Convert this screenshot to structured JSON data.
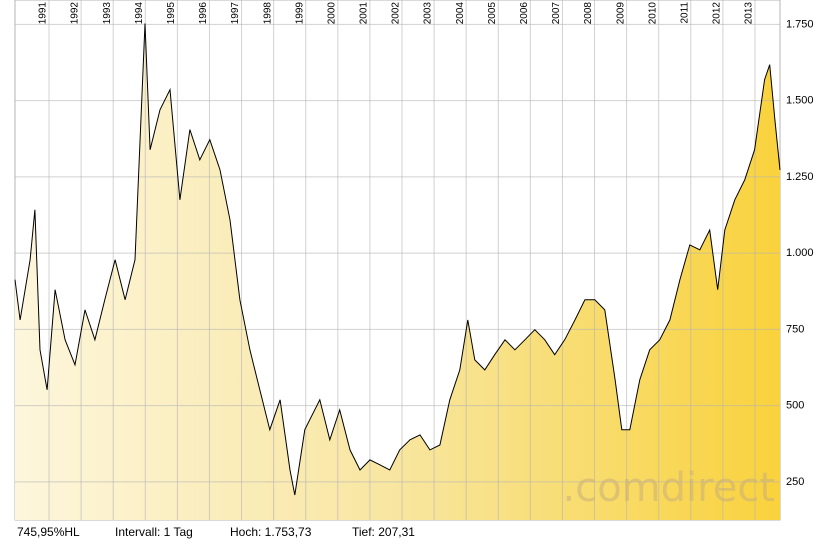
{
  "chart_data": {
    "type": "area",
    "x": [
      1989.94,
      1990.1,
      1990.41,
      1990.56,
      1990.72,
      1990.94,
      1991.19,
      1991.5,
      1991.81,
      1992.12,
      1992.43,
      1992.74,
      1993.06,
      1993.37,
      1993.68,
      1993.99,
      1994.15,
      1994.46,
      1994.77,
      1995.08,
      1995.39,
      1995.7,
      1996.01,
      1996.33,
      1996.64,
      1996.95,
      1997.26,
      1997.57,
      1997.88,
      1998.2,
      1998.51,
      1998.66,
      1998.97,
      1999.44,
      1999.75,
      2000.06,
      2000.38,
      2000.69,
      2001.0,
      2001.31,
      2001.62,
      2001.93,
      2002.25,
      2002.56,
      2002.87,
      2003.18,
      2003.49,
      2003.8,
      2004.05,
      2004.27,
      2004.58,
      2004.89,
      2005.21,
      2005.52,
      2005.83,
      2006.14,
      2006.45,
      2006.76,
      2007.07,
      2007.39,
      2007.7,
      2008.01,
      2008.32,
      2008.64,
      2008.85,
      2009.1,
      2009.41,
      2009.72,
      2010.03,
      2010.35,
      2010.66,
      2010.97,
      2011.28,
      2011.59,
      2011.84,
      2012.06,
      2012.37,
      2012.68,
      2012.99,
      2013.3,
      2013.46,
      2013.62,
      2013.78
    ],
    "values": [
      913,
      781,
      978,
      1142,
      683,
      552,
      880,
      716,
      634,
      814,
      716,
      847,
      978,
      847,
      978,
      1753,
      1339,
      1470,
      1536,
      1175,
      1405,
      1306,
      1372,
      1273,
      1109,
      847,
      683,
      552,
      421,
      519,
      289,
      207,
      421,
      519,
      388,
      486,
      355,
      289,
      322,
      306,
      289,
      355,
      388,
      404,
      355,
      371,
      519,
      617,
      781,
      650,
      617,
      667,
      716,
      683,
      716,
      749,
      716,
      667,
      716,
      781,
      847,
      847,
      814,
      585,
      421,
      421,
      585,
      683,
      716,
      781,
      913,
      1027,
      1011,
      1076,
      880,
      1076,
      1175,
      1240,
      1339,
      1569,
      1618,
      1437,
      1273
    ],
    "color": "#000000",
    "xlim": [
      1989.94,
      2013.78
    ],
    "xticks": [
      1991,
      1992,
      1993,
      1994,
      1995,
      1996,
      1997,
      1998,
      1999,
      2000,
      2001,
      2002,
      2003,
      2004,
      2005,
      2006,
      2007,
      2008,
      2009,
      2010,
      2011,
      2012,
      2013
    ],
    "ylim": [
      125,
      1830
    ],
    "yticks": [
      250,
      500,
      750,
      {
        "value": 1000,
        "label": "1.000"
      },
      {
        "value": 1250,
        "label": "1.250"
      },
      {
        "value": 1500,
        "label": "1.500"
      },
      {
        "value": 1750,
        "label": "1.750"
      }
    ],
    "grid": true,
    "footer": [
      "745,95%HL",
      "Intervall: 1 Tag",
      "Hoch: 1.753,73",
      "Tief: 207,31"
    ],
    "watermark": ".comdirect"
  }
}
